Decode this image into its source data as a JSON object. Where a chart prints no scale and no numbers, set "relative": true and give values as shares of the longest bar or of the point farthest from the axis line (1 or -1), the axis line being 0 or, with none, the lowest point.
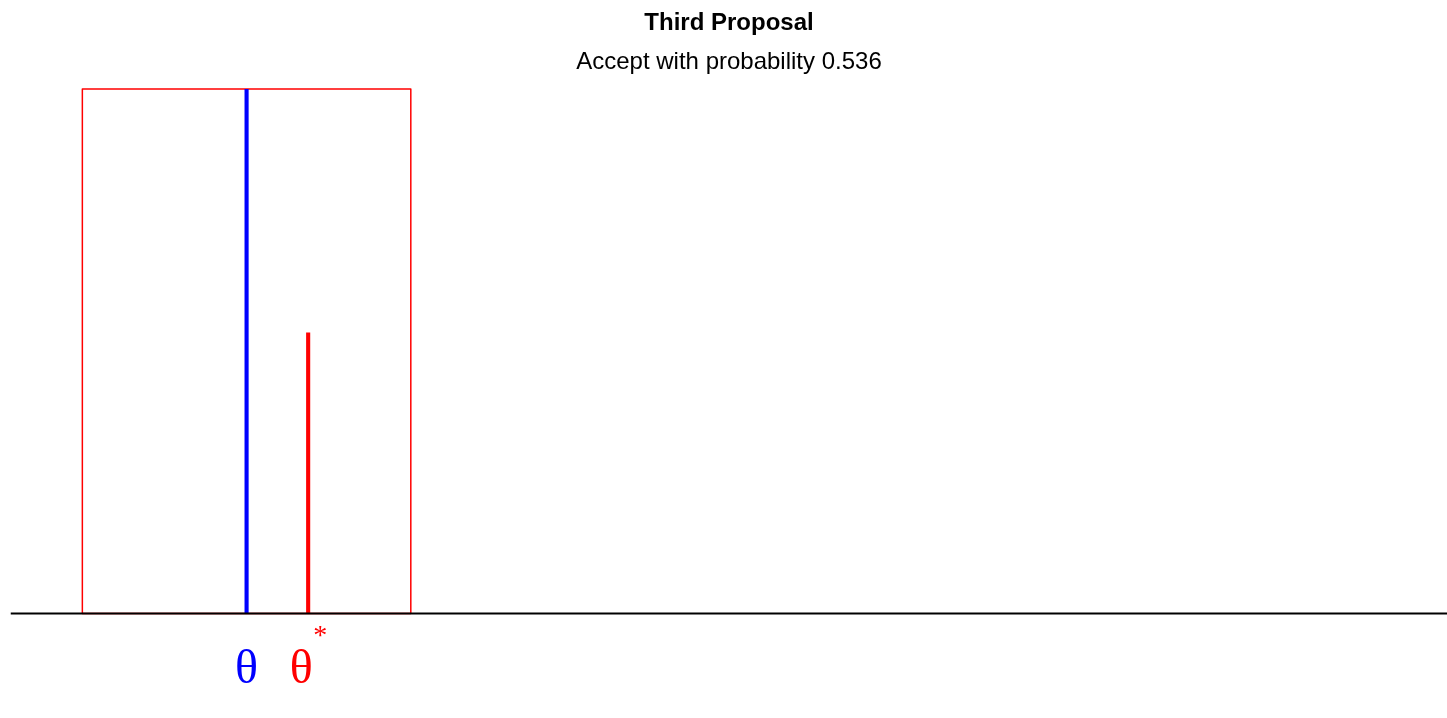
{
  "chart_data": {
    "type": "bar",
    "title": "Third Proposal",
    "subtitle": "Accept with probability 0.536",
    "relative": true,
    "categories": [
      null,
      null,
      null,
      null,
      null,
      null,
      null,
      null,
      null,
      null,
      null,
      "θ",
      null,
      null,
      "θ$^{*}$",
      null,
      null,
      null,
      null,
      null,
      null,
      null,
      null,
      null,
      null,
      null,
      null,
      null,
      null,
      null,
      null,
      null,
      null,
      null,
      null,
      null,
      null,
      null,
      null,
      null,
      null,
      null,
      null,
      null,
      null,
      null,
      null,
      null,
      null,
      null,
      null,
      null,
      null,
      null,
      null,
      null,
      null,
      null,
      null,
      null,
      null,
      null,
      null,
      null,
      null,
      null,
      null,
      null,
      null,
      null
    ],
    "series": [
      {
        "type": "area",
        "color": "#ff0000",
        "values": [
          null,
          null,
          null,
          1,
          1,
          1,
          1,
          1,
          1,
          1,
          1,
          1,
          1,
          1,
          1,
          1,
          1,
          1,
          1,
          1,
          null,
          null,
          null,
          null,
          null,
          null,
          null,
          null,
          null,
          null,
          null,
          null,
          null,
          null,
          null,
          null,
          null,
          null,
          null,
          null,
          null,
          null,
          null,
          null,
          null,
          null,
          null,
          null,
          null,
          null,
          null,
          null,
          null,
          null,
          null,
          null,
          null,
          null,
          null,
          null,
          null,
          null,
          null,
          null,
          null,
          null,
          null,
          null,
          null,
          null
        ]
      },
      {
        "color": "#0000ff",
        "values": [
          null,
          null,
          null,
          null,
          null,
          null,
          null,
          null,
          null,
          null,
          null,
          1,
          null,
          null,
          null,
          null,
          null,
          null,
          null,
          null,
          null,
          null,
          null,
          null,
          null,
          null,
          null,
          null,
          null,
          null,
          null,
          null,
          null,
          null,
          null,
          null,
          null,
          null,
          null,
          null,
          null,
          null,
          null,
          null,
          null,
          null,
          null,
          null,
          null,
          null,
          null,
          null,
          null,
          null,
          null,
          null,
          null,
          null,
          null,
          null,
          null,
          null,
          null,
          null,
          null,
          null,
          null,
          null,
          null,
          null
        ]
      },
      {
        "color": "#ff0000",
        "values": [
          null,
          null,
          null,
          null,
          null,
          null,
          null,
          null,
          null,
          null,
          null,
          null,
          null,
          null,
          0.536,
          null,
          null,
          null,
          null,
          null,
          null,
          null,
          null,
          null,
          null,
          null,
          null,
          null,
          null,
          null,
          null,
          null,
          null,
          null,
          null,
          null,
          null,
          null,
          null,
          null,
          null,
          null,
          null,
          null,
          null,
          null,
          null,
          null,
          null,
          null,
          null,
          null,
          null,
          null,
          null,
          null,
          null,
          null,
          null,
          null,
          null,
          null,
          null,
          null,
          null,
          null,
          null,
          null,
          null,
          null
        ]
      }
    ]
  }
}
